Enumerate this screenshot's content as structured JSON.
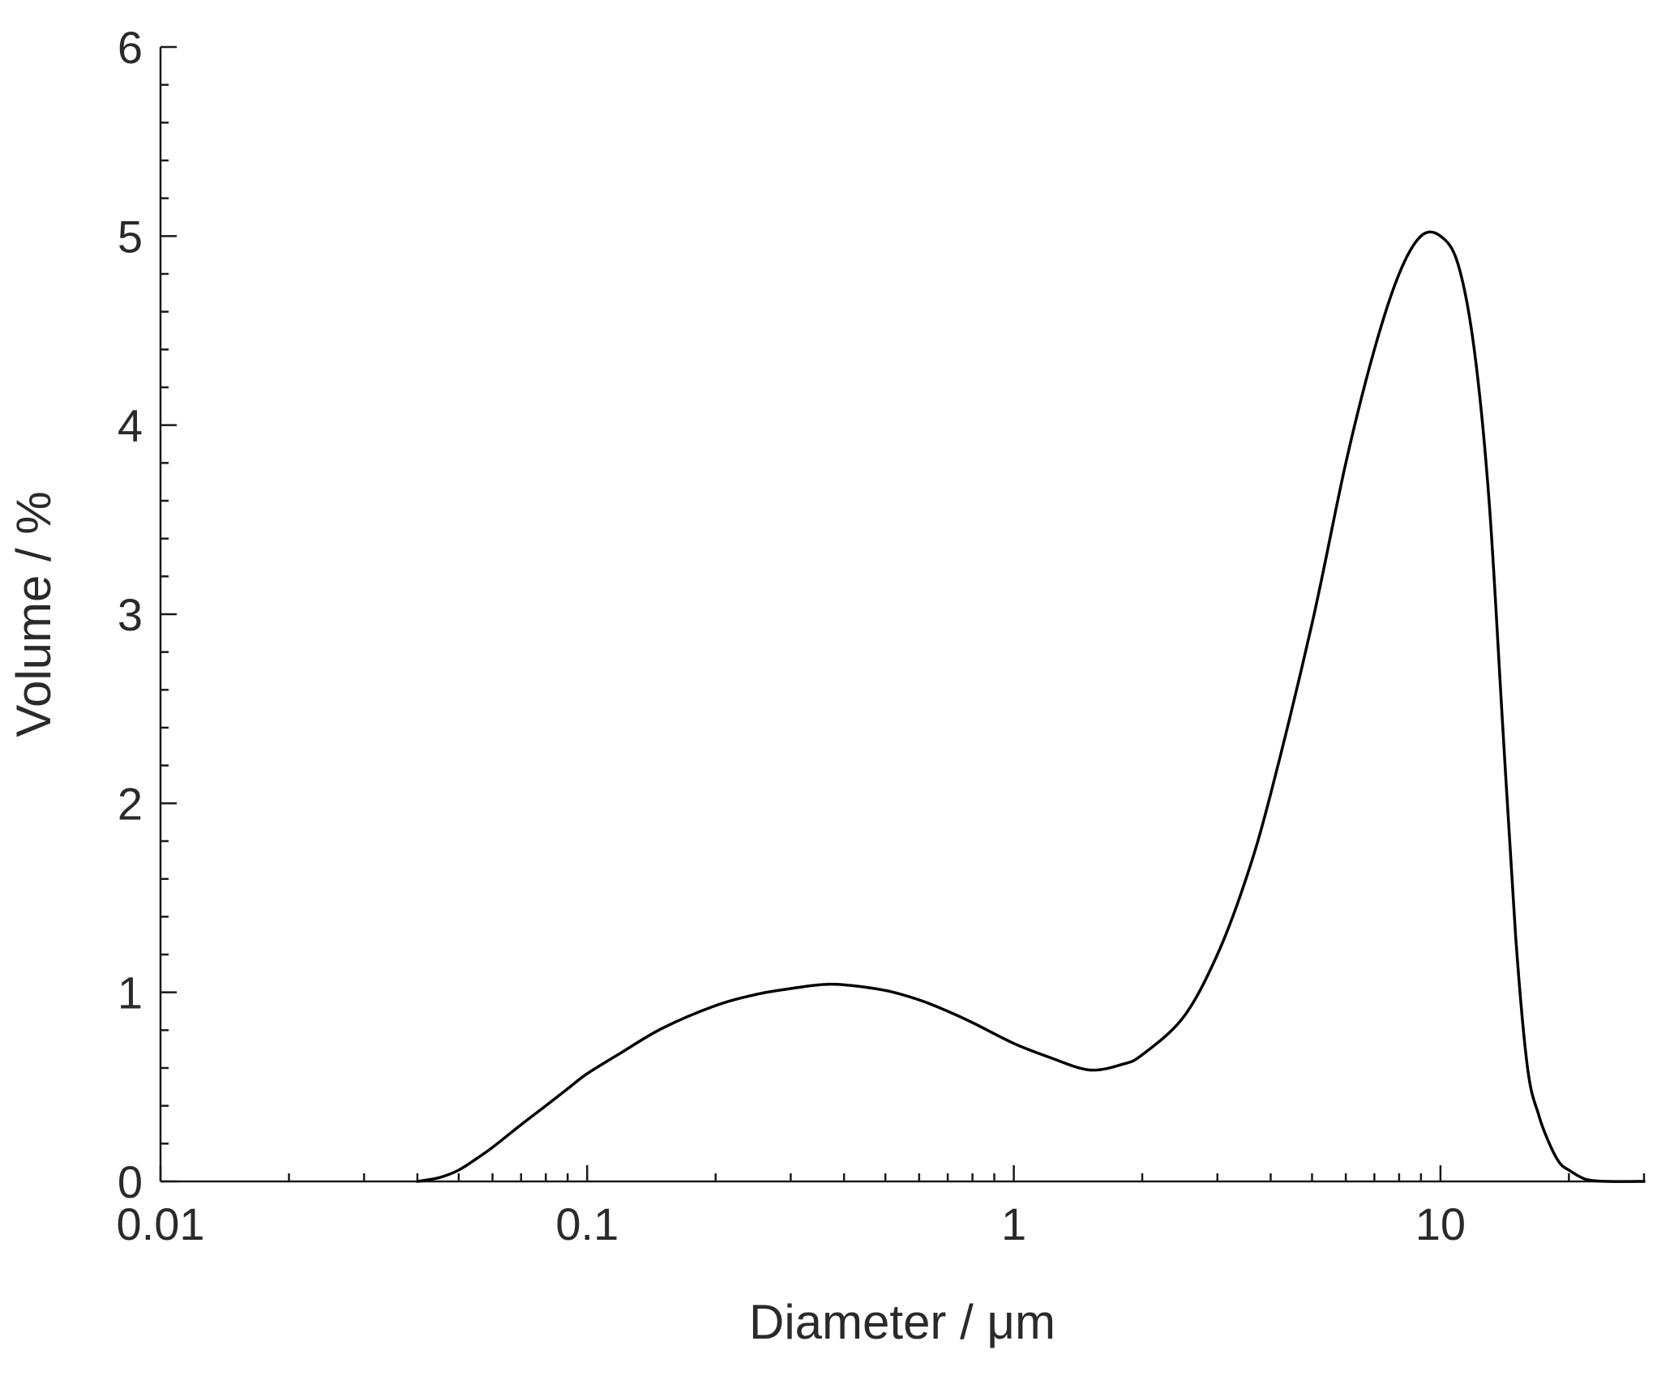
{
  "chart_data": {
    "type": "line",
    "title": "",
    "xlabel": "Diameter / μm",
    "ylabel": "Volume / %",
    "xscale": "log",
    "xlim": [
      0.01,
      30
    ],
    "ylim": [
      0,
      6
    ],
    "grid": false,
    "x_ticks": [
      {
        "value": 0.01,
        "label": "0.01"
      },
      {
        "value": 0.1,
        "label": "0.1"
      },
      {
        "value": 1,
        "label": "1"
      },
      {
        "value": 10,
        "label": "10"
      }
    ],
    "y_ticks": [
      {
        "value": 0,
        "label": "0"
      },
      {
        "value": 1,
        "label": "1"
      },
      {
        "value": 2,
        "label": "2"
      },
      {
        "value": 3,
        "label": "3"
      },
      {
        "value": 4,
        "label": "4"
      },
      {
        "value": 5,
        "label": "5"
      },
      {
        "value": 6,
        "label": "6"
      }
    ],
    "series": [
      {
        "color": "#000000",
        "x": [
          0.04,
          0.045,
          0.05,
          0.055,
          0.06,
          0.07,
          0.08,
          0.09,
          0.1,
          0.12,
          0.15,
          0.2,
          0.25,
          0.3,
          0.35,
          0.4,
          0.5,
          0.6,
          0.7,
          0.8,
          1.0,
          1.2,
          1.5,
          1.8,
          2.0,
          2.5,
          3.0,
          3.5,
          4.0,
          5.0,
          6.0,
          7.0,
          8.0,
          9.0,
          10.0,
          11.0,
          12.0,
          13.0,
          14.0,
          15.0,
          16.0,
          17.0,
          18.0,
          19.0,
          20.0,
          22.0,
          25.0,
          30.0
        ],
        "y": [
          0.0,
          0.02,
          0.06,
          0.12,
          0.18,
          0.3,
          0.4,
          0.49,
          0.57,
          0.68,
          0.81,
          0.93,
          0.99,
          1.02,
          1.04,
          1.04,
          1.01,
          0.96,
          0.9,
          0.84,
          0.73,
          0.66,
          0.59,
          0.62,
          0.67,
          0.87,
          1.2,
          1.6,
          2.05,
          2.95,
          3.8,
          4.4,
          4.8,
          5.0,
          5.0,
          4.85,
          4.4,
          3.6,
          2.4,
          1.3,
          0.6,
          0.35,
          0.2,
          0.1,
          0.06,
          0.01,
          0.0,
          0.0
        ]
      }
    ]
  }
}
